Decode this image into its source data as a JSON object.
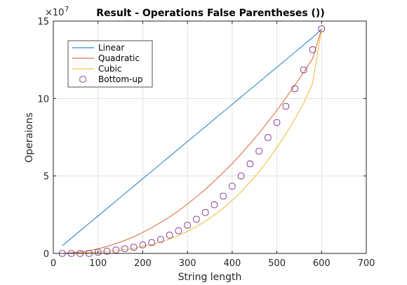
{
  "chart_data": {
    "type": "line",
    "title": "Result - Operations False Parentheses ())",
    "xlabel": "String length",
    "ylabel": "Operaions",
    "y_exponent_label": "×10",
    "y_exponent": "7",
    "xlim": [
      0,
      700
    ],
    "ylim": [
      0,
      150000000
    ],
    "x_ticks": [
      0,
      100,
      200,
      300,
      400,
      500,
      600,
      700
    ],
    "y_ticks": [
      0,
      50000000,
      100000000,
      150000000
    ],
    "x_tick_labels": [
      "0",
      "100",
      "200",
      "300",
      "400",
      "500",
      "600",
      "700"
    ],
    "y_tick_labels": [
      "0",
      "5",
      "10",
      "15"
    ],
    "grid": true,
    "legend_position": "top-left",
    "x": [
      20,
      40,
      60,
      80,
      100,
      120,
      140,
      160,
      180,
      200,
      220,
      240,
      260,
      280,
      300,
      320,
      340,
      360,
      380,
      400,
      420,
      440,
      460,
      480,
      500,
      520,
      540,
      560,
      580,
      600
    ],
    "series": [
      {
        "name": "Linear",
        "color": "#0072BD",
        "style": "line",
        "values": [
          5000000,
          9800000,
          14600000,
          19400000,
          24200000,
          29000000,
          33800000,
          38600000,
          43400000,
          48200000,
          53000000,
          57800000,
          62600000,
          67400000,
          72200000,
          77000000,
          81800000,
          86600000,
          91400000,
          96200000,
          101000000,
          105800000,
          110600000,
          115400000,
          120200000,
          125000000,
          129800000,
          134600000,
          139400000,
          144900000
        ]
      },
      {
        "name": "Quadratic",
        "color": "#D95319",
        "style": "line",
        "values": [
          0,
          400000,
          900000,
          1800000,
          3000000,
          4500000,
          6300000,
          8400000,
          10800000,
          13600000,
          16600000,
          20000000,
          23500000,
          27500000,
          31800000,
          36500000,
          41300000,
          46700000,
          52200000,
          58000000,
          64200000,
          70800000,
          77600000,
          84900000,
          92400000,
          100300000,
          108500000,
          117000000,
          125900000,
          144900000
        ]
      },
      {
        "name": "Cubic",
        "color": "#EDB120",
        "style": "line",
        "values": [
          0,
          100000,
          300000,
          600000,
          900000,
          1300000,
          1800000,
          2400000,
          3100000,
          4600000,
          5700000,
          7300000,
          9300000,
          11600000,
          14200000,
          17300000,
          20800000,
          24800000,
          29300000,
          34200000,
          39800000,
          46000000,
          52800000,
          60100000,
          68300000,
          77100000,
          86700000,
          97000000,
          110000000,
          144900000
        ]
      },
      {
        "name": "Bottom-up",
        "color": "#7E2F8E",
        "style": "markers",
        "values": [
          0,
          0,
          0,
          0,
          800000,
          1400000,
          2200000,
          3000000,
          4000000,
          5500000,
          7000000,
          9000000,
          11800000,
          14600000,
          18200000,
          22100000,
          26400000,
          31400000,
          37000000,
          43400000,
          50000000,
          57800000,
          66000000,
          74800000,
          84500000,
          95000000,
          106300000,
          118500000,
          131500000,
          145000000
        ]
      }
    ]
  }
}
